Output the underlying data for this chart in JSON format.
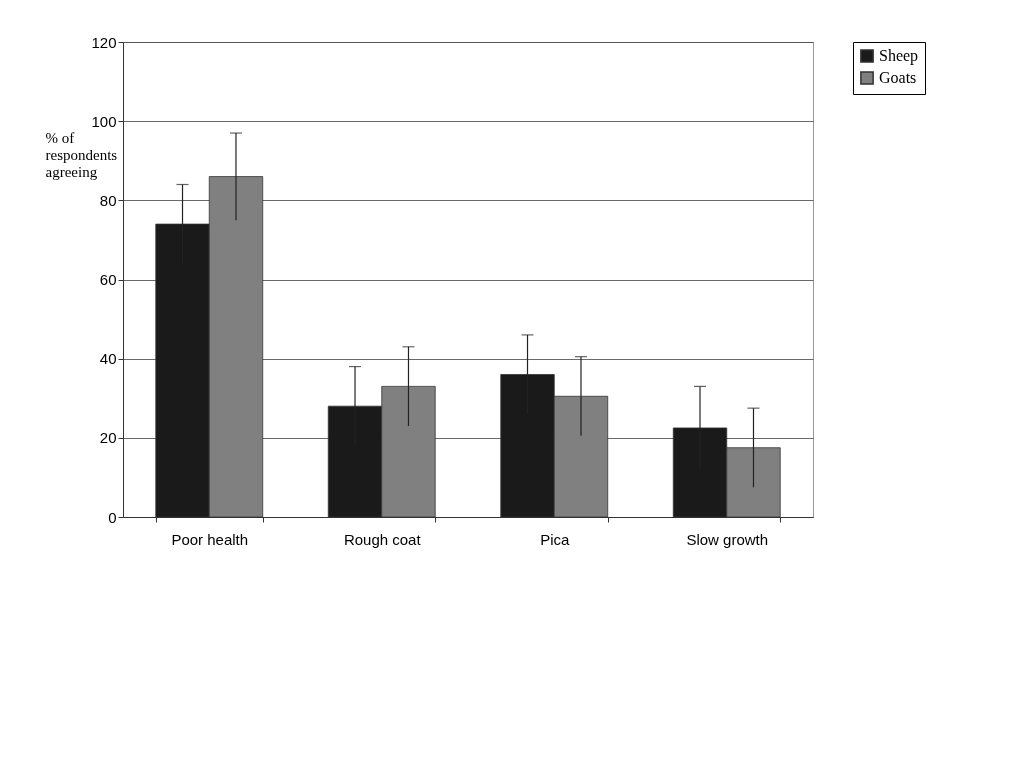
{
  "chart_data": {
    "type": "bar",
    "ylabel": "% of respondents agreeing",
    "categories": [
      "Poor health",
      "Rough coat",
      "Pica",
      "Slow growth"
    ],
    "series": [
      {
        "name": "Sheep",
        "color": "#1a1a1a",
        "values": [
          74,
          28,
          36,
          22.5
        ],
        "errors": [
          10,
          10,
          10,
          10.5
        ]
      },
      {
        "name": "Goats",
        "color": "#808080",
        "values": [
          86,
          33,
          30.5,
          17.5
        ],
        "errors": [
          11,
          10,
          10,
          10
        ]
      }
    ],
    "ylim": [
      0,
      120
    ],
    "yticks": [
      0,
      20,
      40,
      60,
      80,
      100,
      120
    ],
    "grid": "y",
    "legend": "right"
  }
}
